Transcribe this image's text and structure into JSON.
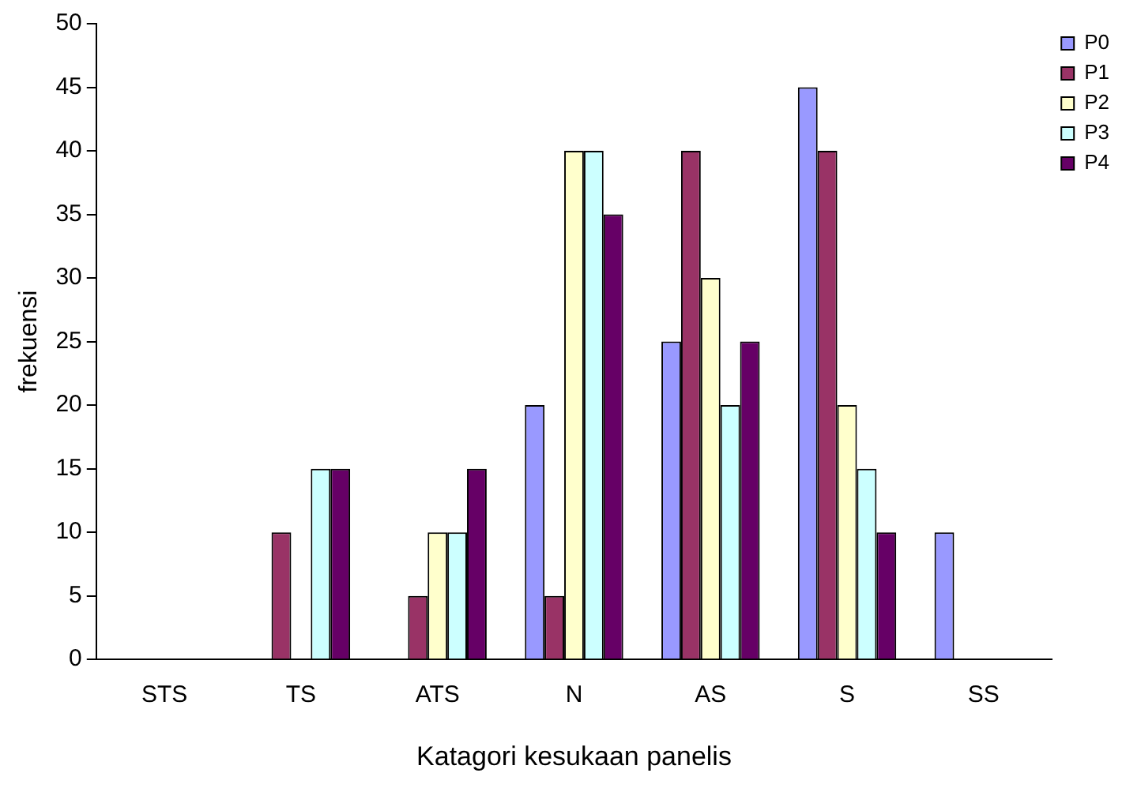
{
  "chart_data": {
    "type": "bar",
    "xlabel": "Katagori kesukaan panelis",
    "ylabel": "frekuensi",
    "categories": [
      "STS",
      "TS",
      "ATS",
      "N",
      "AS",
      "S",
      "SS"
    ],
    "series": [
      {
        "name": "P0",
        "color": "#9999ff",
        "values": [
          0,
          0,
          0,
          20,
          25,
          45,
          10
        ]
      },
      {
        "name": "P1",
        "color": "#993366",
        "values": [
          0,
          10,
          5,
          5,
          40,
          40,
          0
        ]
      },
      {
        "name": "P2",
        "color": "#ffffcc",
        "values": [
          0,
          0,
          10,
          40,
          30,
          20,
          0
        ]
      },
      {
        "name": "P3",
        "color": "#ccffff",
        "values": [
          0,
          15,
          10,
          40,
          20,
          15,
          0
        ]
      },
      {
        "name": "P4",
        "color": "#660066",
        "values": [
          0,
          15,
          15,
          35,
          25,
          10,
          0
        ]
      }
    ],
    "ylim": [
      0,
      50
    ],
    "yticks": [
      0,
      5,
      10,
      15,
      20,
      25,
      30,
      35,
      40,
      45,
      50
    ],
    "grid": false,
    "legend": "right"
  }
}
